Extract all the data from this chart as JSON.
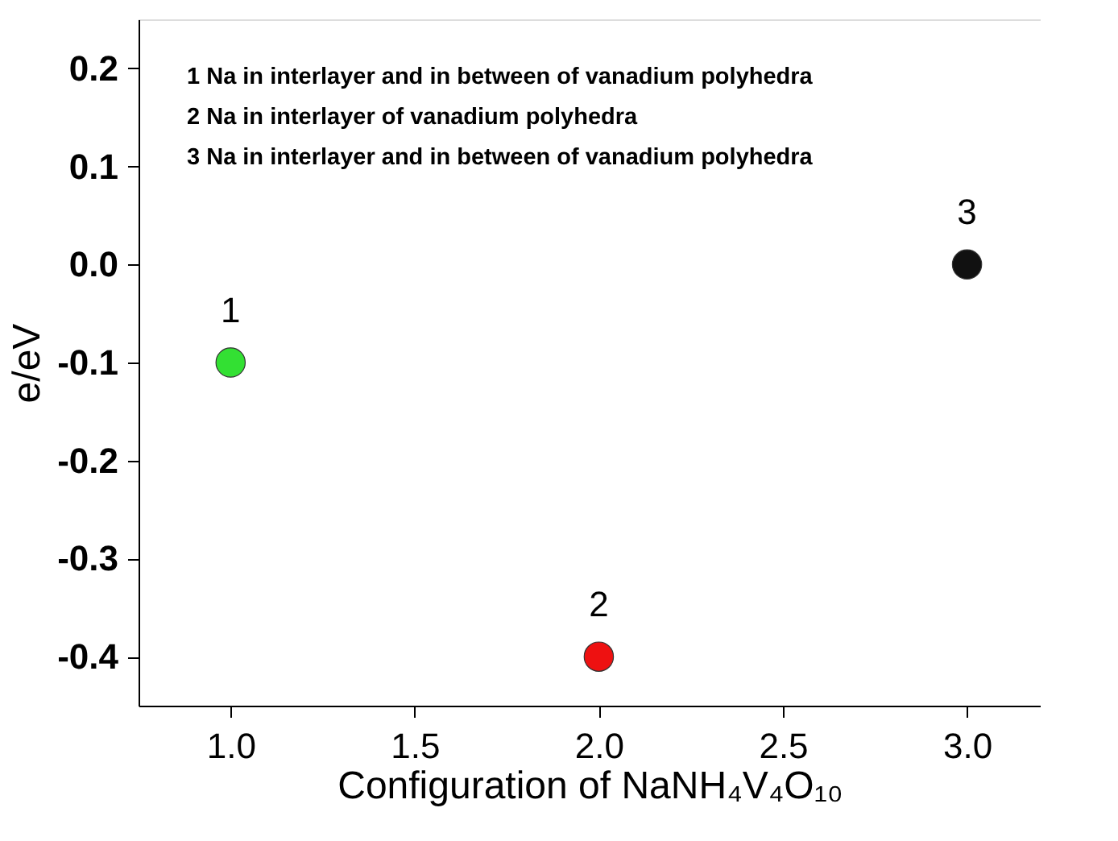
{
  "chart_data": {
    "type": "scatter",
    "xlabel": "Configuration of NaNH₄V₄O₁₀",
    "ylabel": "e/eV",
    "x": [
      1.0,
      2.0,
      3.0
    ],
    "values": [
      -0.1,
      -0.4,
      0.0
    ],
    "colors": [
      "#33e033",
      "#ee1111",
      "#111111"
    ],
    "marker": "circle",
    "xlim": [
      0.75,
      3.2
    ],
    "xticks": [
      {
        "value": 1.0,
        "label": "1.0"
      },
      1.5,
      {
        "value": 2.0,
        "label": "2.0"
      },
      2.5,
      {
        "value": 3.0,
        "label": "3.0"
      }
    ],
    "ylim": [
      -0.45,
      0.25
    ],
    "yticks": [
      -0.4,
      -0.3,
      -0.2,
      -0.1,
      {
        "value": 0.0,
        "label": "0.0"
      },
      0.1,
      0.2
    ],
    "grid": false,
    "annotations": [
      {
        "text": "1",
        "x": 1.0,
        "y": -0.1
      },
      {
        "text": "2",
        "x": 2.0,
        "y": -0.4
      },
      {
        "text": "3",
        "x": 3.0,
        "y": 0.0
      },
      "1 Na in interlayer and in between of vanadium polyhedra",
      "2 Na in interlayer of vanadium polyhedra",
      "3 Na in interlayer and in between of vanadium polyhedra"
    ]
  }
}
